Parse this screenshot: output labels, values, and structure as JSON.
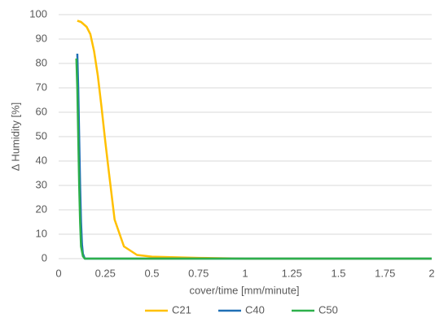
{
  "chart_data": {
    "type": "line",
    "xlabel": "cover/time [mm/minute]",
    "ylabel": "Δ Humidity [%]",
    "xlim": [
      0,
      2
    ],
    "xticks": [
      0,
      0.25,
      0.5,
      0.75,
      1,
      1.25,
      1.5,
      1.75,
      2
    ],
    "ylim": [
      0,
      100
    ],
    "yticks": [
      0,
      10,
      20,
      30,
      40,
      50,
      60,
      70,
      80,
      90,
      100
    ],
    "grid": true,
    "legend": "bottom",
    "series": [
      {
        "name": "C21",
        "color": "#ffc000",
        "x": [
          0.1,
          0.12,
          0.15,
          0.17,
          0.19,
          0.21,
          0.23,
          0.25,
          0.27,
          0.3,
          0.35,
          0.42,
          0.5,
          0.75,
          1,
          2
        ],
        "values": [
          97.5,
          97,
          95,
          92,
          85,
          75,
          62,
          48,
          35,
          16,
          5,
          1.5,
          0.8,
          0.3,
          0,
          0
        ]
      },
      {
        "name": "C40",
        "color": "#1f6fb5",
        "x": [
          0.1,
          0.105,
          0.11,
          0.115,
          0.12,
          0.125,
          0.13,
          0.14,
          2
        ],
        "values": [
          84,
          70,
          50,
          30,
          15,
          6,
          2,
          0,
          0
        ]
      },
      {
        "name": "C50",
        "color": "#2db04b",
        "x": [
          0.095,
          0.1,
          0.105,
          0.11,
          0.115,
          0.12,
          0.13,
          0.14,
          2
        ],
        "values": [
          82,
          70,
          50,
          30,
          15,
          5,
          1,
          0,
          0
        ]
      }
    ]
  }
}
